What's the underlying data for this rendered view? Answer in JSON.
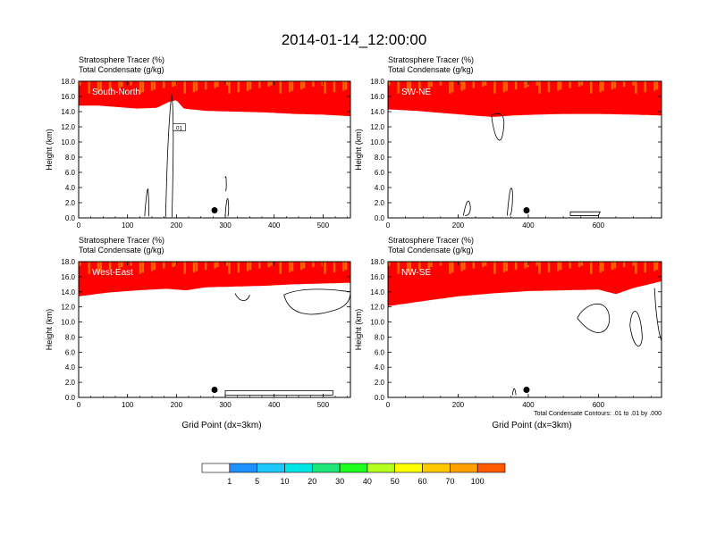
{
  "title": "2014-01-14_12:00:00",
  "chart_data": {
    "type": "contour",
    "common": {
      "label_line1": "Stratosphere Tracer   (%)",
      "label_line2": "Total Condensate   (g/kg)",
      "ylabel": "Height (km)",
      "xlabel": "Grid Point (dx=3km)",
      "ylim": [
        0,
        18
      ],
      "yticks": [
        "0.0",
        "2.0",
        "4.0",
        "6.0",
        "8.0",
        "10.0",
        "12.0",
        "14.0",
        "16.0",
        "18.0"
      ],
      "contour_note": "Total Condensate Contours: .01 to .01 by .000"
    },
    "panels": [
      {
        "name": "South-North",
        "xlim": [
          0,
          556
        ],
        "xticks": [
          "0",
          "100",
          "200",
          "300",
          "400",
          "500"
        ],
        "inline_label": ".01",
        "base_profile": [
          [
            0,
            15.7
          ],
          [
            40,
            15.7
          ],
          [
            80,
            15.5
          ],
          [
            120,
            15.3
          ],
          [
            160,
            15.4
          ],
          [
            185,
            16.2
          ],
          [
            200,
            16.4
          ],
          [
            215,
            15.3
          ],
          [
            260,
            15.0
          ],
          [
            320,
            14.9
          ],
          [
            380,
            14.8
          ],
          [
            440,
            14.6
          ],
          [
            500,
            14.5
          ],
          [
            556,
            14.3
          ]
        ]
      },
      {
        "name": "SW-NE",
        "xlim": [
          0,
          780
        ],
        "xticks": [
          "0",
          "200",
          "400",
          "600"
        ],
        "base_profile": [
          [
            0,
            15.2
          ],
          [
            80,
            15.0
          ],
          [
            160,
            14.7
          ],
          [
            240,
            14.4
          ],
          [
            300,
            14.2
          ],
          [
            360,
            14.4
          ],
          [
            420,
            14.5
          ],
          [
            500,
            14.6
          ],
          [
            600,
            14.6
          ],
          [
            700,
            14.5
          ],
          [
            780,
            14.4
          ]
        ]
      },
      {
        "name": "West-East",
        "xlim": [
          0,
          556
        ],
        "xticks": [
          "0",
          "100",
          "200",
          "300",
          "400",
          "500"
        ],
        "base_profile": [
          [
            0,
            14.3
          ],
          [
            60,
            14.8
          ],
          [
            120,
            15.1
          ],
          [
            180,
            15.3
          ],
          [
            220,
            15.1
          ],
          [
            260,
            15.5
          ],
          [
            320,
            15.6
          ],
          [
            380,
            15.7
          ],
          [
            440,
            15.9
          ],
          [
            500,
            16.0
          ],
          [
            556,
            16.1
          ]
        ]
      },
      {
        "name": "NW-SE",
        "xlim": [
          0,
          780
        ],
        "xticks": [
          "0",
          "200",
          "400",
          "600"
        ],
        "base_profile": [
          [
            0,
            13.0
          ],
          [
            60,
            13.4
          ],
          [
            120,
            13.8
          ],
          [
            200,
            14.3
          ],
          [
            300,
            14.7
          ],
          [
            400,
            15.0
          ],
          [
            500,
            15.1
          ],
          [
            600,
            15.2
          ],
          [
            650,
            14.6
          ],
          [
            700,
            15.4
          ],
          [
            780,
            16.3
          ]
        ]
      }
    ],
    "colorbar": {
      "labels": [
        "1",
        "5",
        "10",
        "20",
        "30",
        "40",
        "50",
        "60",
        "70",
        "100"
      ],
      "colors": [
        "#ffffff",
        "#1e90ff",
        "#1ec8ff",
        "#00e6e6",
        "#1ee678",
        "#1eff1e",
        "#b4ff1e",
        "#ffff00",
        "#ffc800",
        "#ffa000",
        "#ff5a00",
        "#ff0000"
      ]
    }
  }
}
